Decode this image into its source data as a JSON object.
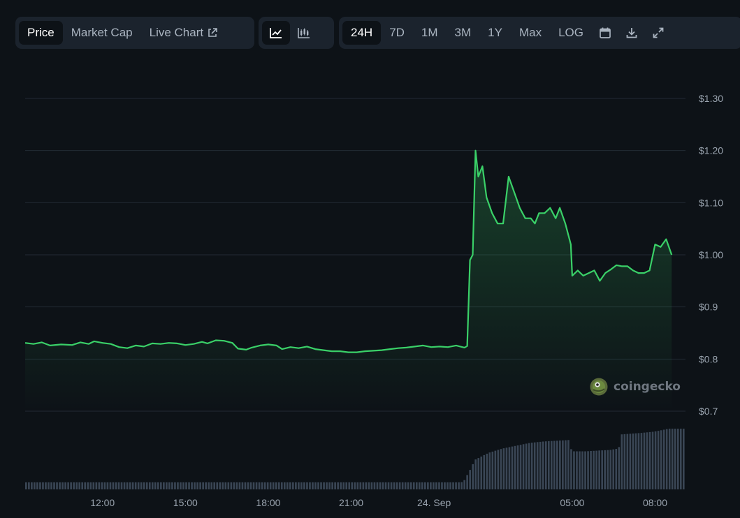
{
  "toolbar": {
    "metric_tabs": [
      "Price",
      "Market Cap",
      "Live Chart"
    ],
    "active_metric": "Price",
    "range_tabs": [
      "24H",
      "7D",
      "1M",
      "3M",
      "1Y",
      "Max",
      "LOG"
    ],
    "active_range": "24H"
  },
  "watermark": "coingecko",
  "colors": {
    "background": "#0d1217",
    "line": "#3ad068",
    "volume": "#3a4655",
    "grid": "#222b34"
  },
  "chart_data": {
    "type": "area",
    "y_ticks": [
      "$1.30",
      "$1.20",
      "$1.10",
      "$1.00",
      "$0.9",
      "$0.8",
      "$0.7"
    ],
    "y_tick_values": [
      1.3,
      1.2,
      1.1,
      1.0,
      0.9,
      0.8,
      0.7
    ],
    "ylim": [
      0.7,
      1.3
    ],
    "x_ticks": [
      "12:00",
      "15:00",
      "18:00",
      "21:00",
      "24. Sep",
      "05:00",
      "08:00"
    ],
    "x_tick_hours": [
      12,
      15,
      18,
      21,
      24,
      29,
      32
    ],
    "xlim": [
      9.2,
      33.1
    ],
    "grid": true,
    "price": [
      [
        9.2,
        0.831
      ],
      [
        9.5,
        0.829
      ],
      [
        9.8,
        0.832
      ],
      [
        10.1,
        0.826
      ],
      [
        10.5,
        0.828
      ],
      [
        10.9,
        0.827
      ],
      [
        11.2,
        0.832
      ],
      [
        11.5,
        0.829
      ],
      [
        11.7,
        0.834
      ],
      [
        12.0,
        0.831
      ],
      [
        12.3,
        0.829
      ],
      [
        12.6,
        0.823
      ],
      [
        12.9,
        0.821
      ],
      [
        13.2,
        0.826
      ],
      [
        13.5,
        0.824
      ],
      [
        13.8,
        0.83
      ],
      [
        14.1,
        0.829
      ],
      [
        14.4,
        0.831
      ],
      [
        14.7,
        0.83
      ],
      [
        15.0,
        0.827
      ],
      [
        15.3,
        0.829
      ],
      [
        15.6,
        0.833
      ],
      [
        15.8,
        0.83
      ],
      [
        16.1,
        0.836
      ],
      [
        16.4,
        0.835
      ],
      [
        16.7,
        0.831
      ],
      [
        16.9,
        0.82
      ],
      [
        17.2,
        0.818
      ],
      [
        17.4,
        0.822
      ],
      [
        17.7,
        0.826
      ],
      [
        18.0,
        0.828
      ],
      [
        18.3,
        0.826
      ],
      [
        18.5,
        0.819
      ],
      [
        18.8,
        0.823
      ],
      [
        19.1,
        0.821
      ],
      [
        19.4,
        0.824
      ],
      [
        19.7,
        0.819
      ],
      [
        20.0,
        0.817
      ],
      [
        20.3,
        0.815
      ],
      [
        20.6,
        0.815
      ],
      [
        20.9,
        0.813
      ],
      [
        21.2,
        0.813
      ],
      [
        21.5,
        0.815
      ],
      [
        21.8,
        0.816
      ],
      [
        22.1,
        0.817
      ],
      [
        22.4,
        0.819
      ],
      [
        22.7,
        0.821
      ],
      [
        23.0,
        0.822
      ],
      [
        23.3,
        0.824
      ],
      [
        23.6,
        0.826
      ],
      [
        23.9,
        0.823
      ],
      [
        24.2,
        0.824
      ],
      [
        24.5,
        0.823
      ],
      [
        24.8,
        0.826
      ],
      [
        25.1,
        0.822
      ],
      [
        25.2,
        0.825
      ],
      [
        25.3,
        0.99
      ],
      [
        25.4,
        1.0
      ],
      [
        25.5,
        1.2
      ],
      [
        25.6,
        1.15
      ],
      [
        25.75,
        1.17
      ],
      [
        25.9,
        1.11
      ],
      [
        26.1,
        1.08
      ],
      [
        26.3,
        1.06
      ],
      [
        26.5,
        1.06
      ],
      [
        26.7,
        1.15
      ],
      [
        26.9,
        1.12
      ],
      [
        27.1,
        1.09
      ],
      [
        27.3,
        1.07
      ],
      [
        27.5,
        1.07
      ],
      [
        27.65,
        1.06
      ],
      [
        27.8,
        1.08
      ],
      [
        28.0,
        1.08
      ],
      [
        28.2,
        1.09
      ],
      [
        28.4,
        1.07
      ],
      [
        28.55,
        1.09
      ],
      [
        28.75,
        1.06
      ],
      [
        28.95,
        1.02
      ],
      [
        29.0,
        0.96
      ],
      [
        29.2,
        0.97
      ],
      [
        29.4,
        0.96
      ],
      [
        29.6,
        0.965
      ],
      [
        29.8,
        0.97
      ],
      [
        30.0,
        0.95
      ],
      [
        30.2,
        0.965
      ],
      [
        30.4,
        0.972
      ],
      [
        30.6,
        0.98
      ],
      [
        30.8,
        0.978
      ],
      [
        31.0,
        0.978
      ],
      [
        31.2,
        0.97
      ],
      [
        31.4,
        0.965
      ],
      [
        31.6,
        0.965
      ],
      [
        31.8,
        0.97
      ],
      [
        32.0,
        1.02
      ],
      [
        32.2,
        1.015
      ],
      [
        32.4,
        1.03
      ],
      [
        32.6,
        1.0
      ]
    ],
    "volume": [
      [
        9.2,
        0.05
      ],
      [
        25.0,
        0.05
      ],
      [
        25.1,
        0.06
      ],
      [
        25.3,
        0.13
      ],
      [
        25.5,
        0.21
      ],
      [
        26.0,
        0.26
      ],
      [
        26.5,
        0.29
      ],
      [
        27.0,
        0.31
      ],
      [
        27.5,
        0.33
      ],
      [
        28.0,
        0.34
      ],
      [
        28.9,
        0.35
      ],
      [
        29.0,
        0.27
      ],
      [
        29.5,
        0.27
      ],
      [
        30.4,
        0.28
      ],
      [
        30.7,
        0.29
      ],
      [
        30.8,
        0.39
      ],
      [
        31.5,
        0.4
      ],
      [
        32.0,
        0.41
      ],
      [
        32.5,
        0.43
      ],
      [
        33.1,
        0.43
      ]
    ],
    "volume_ylim": [
      0,
      0.5
    ]
  }
}
